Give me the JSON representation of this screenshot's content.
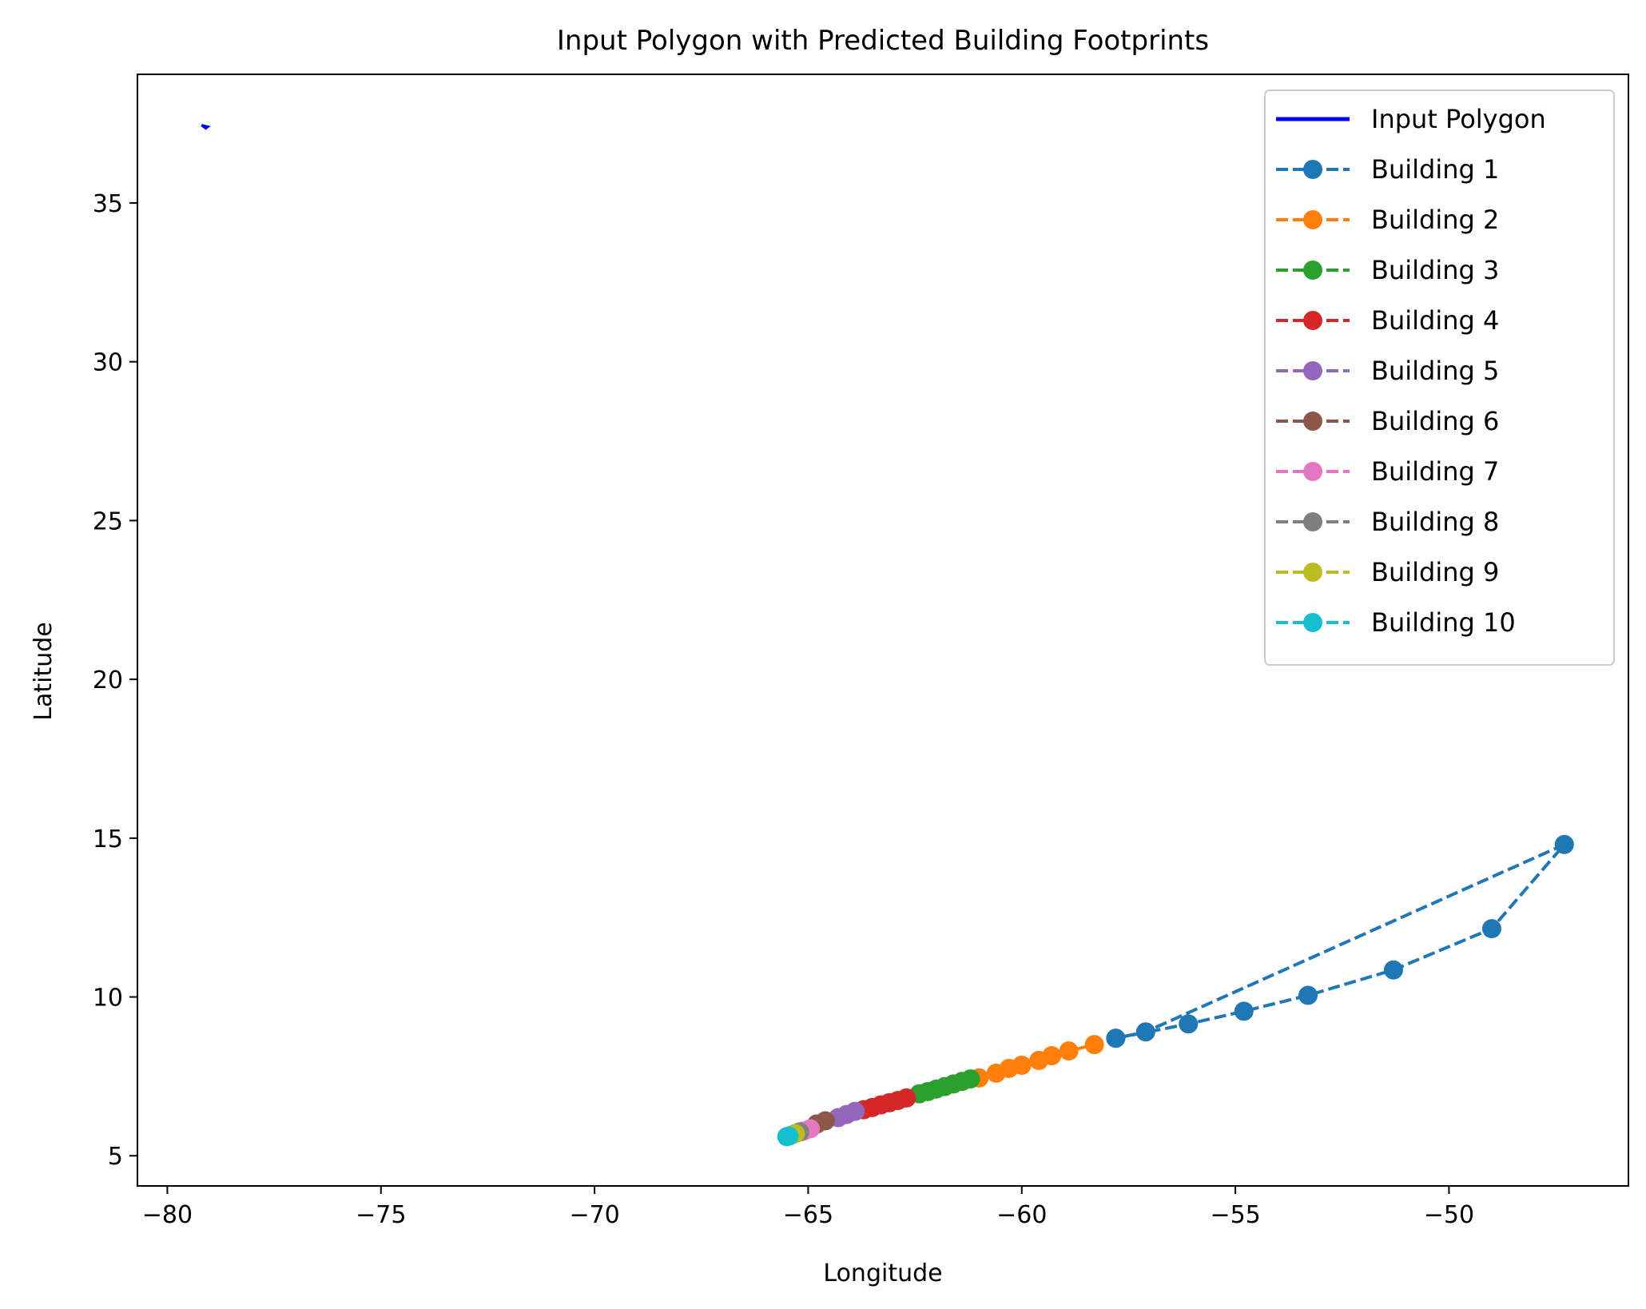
{
  "chart_data": {
    "type": "line",
    "title": "Input Polygon with Predicted Building Footprints",
    "xlabel": "Longitude",
    "ylabel": "Latitude",
    "xlim": [
      -80.7,
      -45.8
    ],
    "ylim": [
      4.05,
      39.05
    ],
    "xticks": [
      -80,
      -75,
      -70,
      -65,
      -60,
      -55,
      -50
    ],
    "xtick_labels": [
      "−80",
      "−75",
      "−70",
      "−65",
      "−60",
      "−55",
      "−50"
    ],
    "yticks": [
      5,
      10,
      15,
      20,
      25,
      30,
      35
    ],
    "ytick_labels": [
      "5",
      "10",
      "15",
      "20",
      "25",
      "30",
      "35"
    ],
    "grid": false,
    "legend_position": "upper right",
    "series": [
      {
        "name": "Input Polygon",
        "color": "#0000ff",
        "style": "solid",
        "marker": "none",
        "x": [
          -79.2,
          -79.05,
          -79.1,
          -79.2
        ],
        "y": [
          37.45,
          37.4,
          37.35,
          37.45
        ]
      },
      {
        "name": "Building 1",
        "color": "#1f77b4",
        "style": "dashed",
        "marker": "circle",
        "x": [
          -57.8,
          -56.1,
          -54.8,
          -53.3,
          -51.3,
          -49.0,
          -47.3,
          -57.1,
          -57.8
        ],
        "y": [
          8.7,
          9.15,
          9.55,
          10.05,
          10.85,
          12.15,
          14.8,
          8.9,
          8.7
        ]
      },
      {
        "name": "Building 2",
        "color": "#ff7f0e",
        "style": "dashed",
        "marker": "circle",
        "x": [
          -61.0,
          -60.6,
          -60.3,
          -60.0,
          -59.6,
          -59.3,
          -58.9,
          -58.3
        ],
        "y": [
          7.45,
          7.6,
          7.75,
          7.85,
          8.0,
          8.15,
          8.3,
          8.5
        ]
      },
      {
        "name": "Building 3",
        "color": "#2ca02c",
        "style": "dashed",
        "marker": "circle",
        "x": [
          -62.4,
          -62.2,
          -62.0,
          -61.8,
          -61.6,
          -61.4,
          -61.2
        ],
        "y": [
          6.95,
          7.02,
          7.1,
          7.18,
          7.26,
          7.34,
          7.42
        ]
      },
      {
        "name": "Building 4",
        "color": "#d62728",
        "style": "dashed",
        "marker": "circle",
        "x": [
          -63.7,
          -63.5,
          -63.3,
          -63.1,
          -62.9,
          -62.7
        ],
        "y": [
          6.45,
          6.52,
          6.6,
          6.67,
          6.74,
          6.82
        ]
      },
      {
        "name": "Building 5",
        "color": "#9467bd",
        "style": "dashed",
        "marker": "circle",
        "x": [
          -64.3,
          -64.1,
          -63.9
        ],
        "y": [
          6.2,
          6.3,
          6.4
        ]
      },
      {
        "name": "Building 6",
        "color": "#8c564b",
        "style": "dashed",
        "marker": "circle",
        "x": [
          -64.8,
          -64.6
        ],
        "y": [
          6.0,
          6.1
        ]
      },
      {
        "name": "Building 7",
        "color": "#e377c2",
        "style": "dashed",
        "marker": "circle",
        "x": [
          -65.1,
          -64.95
        ],
        "y": [
          5.78,
          5.85
        ]
      },
      {
        "name": "Building 8",
        "color": "#7f7f7f",
        "style": "dashed",
        "marker": "circle",
        "x": [
          -65.3,
          -65.2
        ],
        "y": [
          5.7,
          5.75
        ]
      },
      {
        "name": "Building 9",
        "color": "#bcbd22",
        "style": "dashed",
        "marker": "circle",
        "x": [
          -65.4,
          -65.3
        ],
        "y": [
          5.65,
          5.7
        ]
      },
      {
        "name": "Building 10",
        "color": "#17becf",
        "style": "dashed",
        "marker": "circle",
        "x": [
          -65.5,
          -65.45
        ],
        "y": [
          5.6,
          5.62
        ]
      }
    ]
  }
}
